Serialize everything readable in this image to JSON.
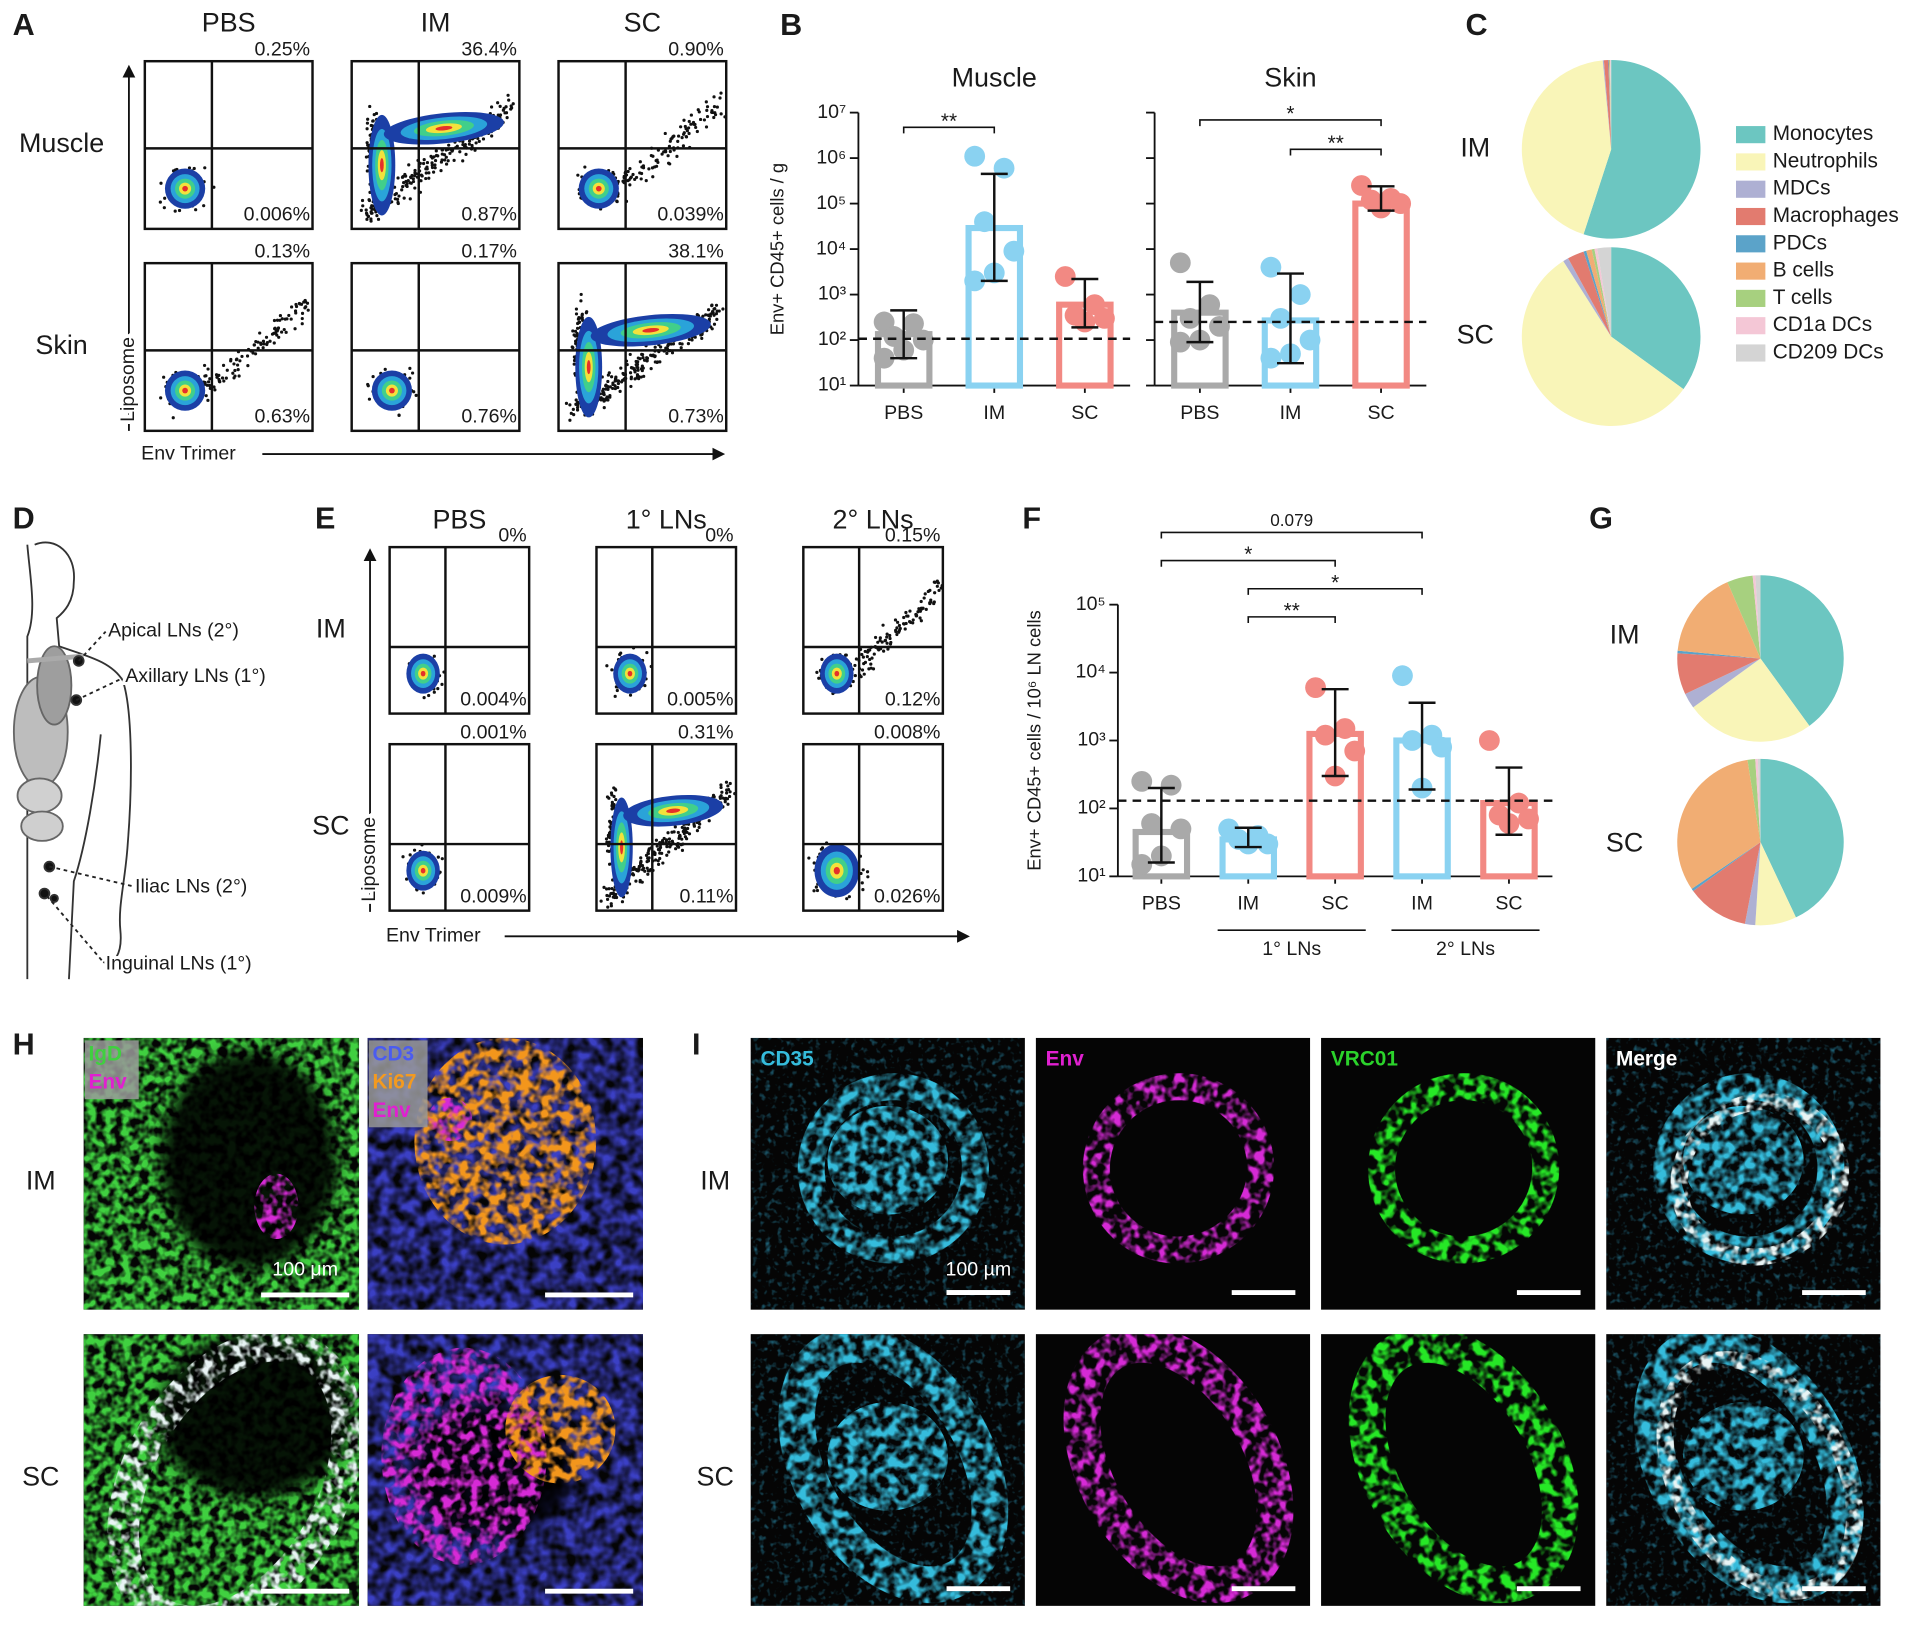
{
  "panel_labels": [
    "A",
    "B",
    "C",
    "D",
    "E",
    "F",
    "G",
    "H",
    "I"
  ],
  "A": {
    "columns": [
      "PBS",
      "IM",
      "SC"
    ],
    "rows": [
      "Muscle",
      "Skin"
    ],
    "x_axis": "Env Trimer",
    "y_axis": "Liposome",
    "quadrants": [
      [
        [
          "0.25%",
          "0.006%"
        ],
        [
          "36.4%",
          "0.87%"
        ],
        [
          "0.90%",
          "0.039%"
        ]
      ],
      [
        [
          "0.13%",
          "0.63%"
        ],
        [
          "0.17%",
          "0.76%"
        ],
        [
          "38.1%",
          "0.73%"
        ]
      ]
    ]
  },
  "D": {
    "labels": [
      "Apical LNs (2°)",
      "Axillary LNs (1°)",
      "Iliac LNs (2°)",
      "Inguinal LNs (1°)"
    ]
  },
  "E": {
    "columns": [
      "PBS",
      "1° LNs",
      "2° LNs"
    ],
    "rows": [
      "IM",
      "SC"
    ],
    "x_axis": "Env Trimer",
    "y_axis": "Liposome",
    "quadrants": [
      [
        [
          "0%",
          "0.004%"
        ],
        [
          "0%",
          "0.005%"
        ],
        [
          "0.15%",
          "0.12%"
        ]
      ],
      [
        [
          "0.001%",
          "0.009%"
        ],
        [
          "0.31%",
          "0.11%"
        ],
        [
          "0.008%",
          "0.026%"
        ]
      ]
    ]
  },
  "H": {
    "rows": [
      "IM",
      "SC"
    ],
    "channels": [
      [
        "IgD",
        "Env"
      ],
      [
        "CD3",
        "Ki67",
        "Env"
      ]
    ],
    "scale_bar": "100 μm"
  },
  "I": {
    "rows": [
      "IM",
      "SC"
    ],
    "channels": [
      "CD35",
      "Env",
      "VRC01",
      "Merge"
    ],
    "scale_bar": "100 µm"
  },
  "chart_data": [
    {
      "type": "bar",
      "title": "Muscle",
      "y_label": "Env+ CD45+ cells / g",
      "log_y": true,
      "ylim": [
        10,
        10000000
      ],
      "yticks": [
        {
          "value": 10,
          "label": "10¹"
        },
        {
          "value": 100,
          "label": "10²"
        },
        {
          "value": 1000,
          "label": "10³"
        },
        {
          "value": 10000,
          "label": "10⁴"
        },
        {
          "value": 100000,
          "label": "10⁵"
        },
        {
          "value": 1000000,
          "label": "10⁶"
        },
        {
          "value": 10000000,
          "label": "10⁷"
        }
      ],
      "categories": [
        "PBS",
        "IM",
        "SC"
      ],
      "colors": [
        "#a9a9a9",
        "#8ad2f1",
        "#f28983"
      ],
      "values": [
        135,
        29000,
        600
      ],
      "error_low": [
        40,
        2000,
        190
      ],
      "error_high": [
        450,
        450000,
        2200
      ],
      "points": [
        [
          250,
          230,
          120,
          100,
          60,
          40
        ],
        [
          1100000,
          600000,
          40000,
          9000,
          3000,
          2000
        ],
        [
          2500,
          600,
          350,
          300,
          250
        ]
      ],
      "reference_line": 107,
      "comparisons": [
        {
          "between": [
            0,
            1
          ],
          "label": "**"
        }
      ]
    },
    {
      "type": "bar",
      "title": "Skin",
      "share_y": true,
      "categories": [
        "PBS",
        "IM",
        "SC"
      ],
      "colors": [
        "#a9a9a9",
        "#8ad2f1",
        "#f28983"
      ],
      "values": [
        400,
        270,
        100000
      ],
      "error_low": [
        90,
        31,
        70000
      ],
      "error_high": [
        1900,
        2900,
        240000
      ],
      "points": [
        [
          5000,
          600,
          300,
          200,
          100,
          90
        ],
        [
          4000,
          1000,
          300,
          100,
          50,
          40
        ],
        [
          250000,
          130000,
          120000,
          100000,
          80000
        ]
      ],
      "reference_line": 250,
      "comparisons": [
        {
          "between": [
            0,
            2
          ],
          "label": "*"
        },
        {
          "between": [
            1,
            2
          ],
          "label": "**"
        }
      ]
    },
    {
      "type": "pie",
      "categories": [
        "Monocytes",
        "Neutrophils",
        "MDCs",
        "Macrophages",
        "PDCs",
        "B cells",
        "T cells",
        "CD1a DCs",
        "CD209 DCs"
      ],
      "colors": [
        "#6cc6c1",
        "#f9f5b8",
        "#aeb0d3",
        "#e27b6f",
        "#5ba3c9",
        "#f1ad73",
        "#a7d07f",
        "#f4c7d6",
        "#d4d4d4"
      ],
      "series": [
        {
          "name": "IM",
          "values": [
            55,
            43.5,
            0.2,
            0.8,
            0.1,
            0.1,
            0.1,
            0.1,
            0.1
          ]
        },
        {
          "name": "SC",
          "values": [
            35,
            56,
            1,
            3,
            0.5,
            1,
            0.5,
            0.5,
            2.5
          ]
        }
      ]
    },
    {
      "type": "bar",
      "y_label": "Env+ CD45+ cells / 10⁶ LN cells",
      "log_y": true,
      "ylim": [
        10,
        100000
      ],
      "yticks": [
        {
          "value": 10,
          "label": "10¹"
        },
        {
          "value": 100,
          "label": "10²"
        },
        {
          "value": 1000,
          "label": "10³"
        },
        {
          "value": 10000,
          "label": "10⁴"
        },
        {
          "value": 100000,
          "label": "10⁵"
        }
      ],
      "categories": [
        "PBS",
        "IM",
        "SC",
        "IM",
        "SC"
      ],
      "groups": [
        {
          "name": "1° LNs",
          "members": [
            1,
            2
          ]
        },
        {
          "name": "2° LNs",
          "members": [
            3,
            4
          ]
        }
      ],
      "colors": [
        "#a9a9a9",
        "#8ad2f1",
        "#f28983",
        "#8ad2f1",
        "#f28983"
      ],
      "values": [
        45,
        35,
        1250,
        1000,
        120
      ],
      "error_low": [
        16,
        27,
        300,
        190,
        41
      ],
      "error_high": [
        200,
        52,
        5700,
        3600,
        400
      ],
      "points": [
        [
          250,
          220,
          60,
          50,
          20,
          15
        ],
        [
          50,
          40,
          35,
          30,
          30
        ],
        [
          6000,
          1500,
          1200,
          700,
          300
        ],
        [
          9000,
          1200,
          1000,
          800,
          200
        ],
        [
          1000,
          120,
          80,
          70,
          60
        ]
      ],
      "reference_line": 130,
      "comparisons": [
        {
          "between": [
            0,
            3
          ],
          "label": "0.079"
        },
        {
          "between": [
            0,
            2
          ],
          "label": "*"
        },
        {
          "between": [
            1,
            3
          ],
          "label": "*"
        },
        {
          "between": [
            1,
            2
          ],
          "label": "**"
        }
      ]
    },
    {
      "type": "pie",
      "series": [
        {
          "name": "IM",
          "values": [
            40,
            25,
            3,
            8,
            0.5,
            17,
            5,
            0.5,
            1
          ]
        },
        {
          "name": "SC",
          "values": [
            43,
            8,
            2,
            12,
            0.5,
            32,
            1.5,
            0.5,
            0.5
          ]
        }
      ]
    }
  ]
}
